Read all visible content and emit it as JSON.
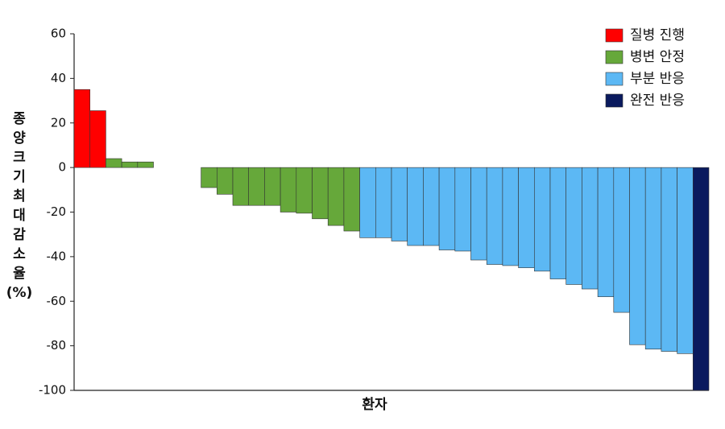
{
  "chart_data": {
    "type": "bar",
    "ylabel": [
      "종",
      "양",
      "크",
      "기",
      "최",
      "대",
      "감",
      "소",
      "율",
      "(%)"
    ],
    "xlabel": "환자",
    "categories": [
      null,
      null,
      null,
      null,
      null,
      null,
      null,
      null,
      null,
      null,
      null,
      null,
      null,
      null,
      null,
      null,
      null,
      null,
      null,
      null,
      null,
      null,
      null,
      null,
      null,
      null,
      null,
      null,
      null,
      null,
      null,
      null,
      null,
      null,
      null,
      null,
      null,
      null,
      null,
      null
    ],
    "series": [
      {
        "name": "질병 진행",
        "color": "#ff0000",
        "values": [
          35,
          25.5,
          null,
          null,
          null,
          null,
          null,
          null,
          null,
          null,
          null,
          null,
          null,
          null,
          null,
          null,
          null,
          null,
          null,
          null,
          null,
          null,
          null,
          null,
          null,
          null,
          null,
          null,
          null,
          null,
          null,
          null,
          null,
          null,
          null,
          null,
          null,
          null,
          null,
          null
        ]
      },
      {
        "name": "병변 안정",
        "color": "#66a83a",
        "values": [
          null,
          null,
          4,
          2.5,
          2.5,
          0,
          0,
          0,
          -9,
          -12,
          -17,
          -17,
          -17,
          -20,
          -20.5,
          -23,
          -26,
          -28.5,
          null,
          null,
          null,
          null,
          null,
          null,
          null,
          null,
          null,
          null,
          null,
          null,
          null,
          null,
          null,
          null,
          null,
          null,
          null,
          null,
          null,
          null
        ]
      },
      {
        "name": "부분 반응",
        "color": "#5cb8f4",
        "values": [
          null,
          null,
          null,
          null,
          null,
          null,
          null,
          null,
          null,
          null,
          null,
          null,
          null,
          null,
          null,
          null,
          null,
          null,
          -31.5,
          -31.5,
          -33,
          -35,
          -35,
          -37,
          -37.5,
          -41.5,
          -43.5,
          -44,
          -45,
          -46.5,
          -50,
          -52.5,
          -54.5,
          -58,
          -65,
          -79.5,
          -81.5,
          -82.5,
          -83.5,
          null
        ]
      },
      {
        "name": "완전 반응",
        "color": "#0a1a5e",
        "values": [
          null,
          null,
          null,
          null,
          null,
          null,
          null,
          null,
          null,
          null,
          null,
          null,
          null,
          null,
          null,
          null,
          null,
          null,
          null,
          null,
          null,
          null,
          null,
          null,
          null,
          null,
          null,
          null,
          null,
          null,
          null,
          null,
          null,
          null,
          null,
          null,
          null,
          null,
          null,
          -100
        ]
      }
    ],
    "ylim": [
      -100,
      60
    ],
    "yticks": [
      60,
      40,
      20,
      0,
      -20,
      -40,
      -60,
      -80,
      -100
    ],
    "legend": "top-right"
  }
}
